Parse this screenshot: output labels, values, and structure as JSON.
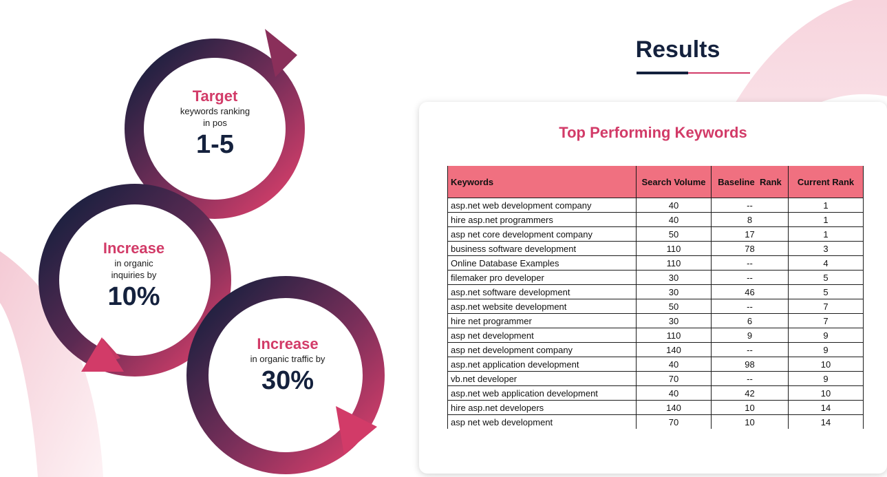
{
  "results": {
    "title": "Results"
  },
  "circles": [
    {
      "heading": "Target",
      "sub": [
        "keywords ranking",
        "in pos"
      ],
      "value": "1-5"
    },
    {
      "heading": "Increase",
      "sub": [
        "in organic",
        "inquiries by"
      ],
      "value": "10%"
    },
    {
      "heading": "Increase",
      "sub": [
        "in organic traffic by"
      ],
      "value": "30%"
    }
  ],
  "table": {
    "title": "Top Performing Keywords",
    "headers": [
      "Keywords",
      "Search Volume",
      "Baseline  Rank",
      "Current Rank"
    ],
    "rows": [
      [
        "asp.net web development company",
        "40",
        "--",
        "1"
      ],
      [
        "hire asp.net programmers",
        "40",
        "8",
        "1"
      ],
      [
        "asp net core development company",
        "50",
        "17",
        "1"
      ],
      [
        "business software development",
        "110",
        "78",
        "3"
      ],
      [
        "Online Database Examples",
        "110",
        "--",
        "4"
      ],
      [
        "filemaker pro developer",
        "30",
        "--",
        "5"
      ],
      [
        "asp.net software development",
        "30",
        "46",
        "5"
      ],
      [
        "asp.net website development",
        "50",
        "--",
        "7"
      ],
      [
        "hire net programmer",
        "30",
        "6",
        "7"
      ],
      [
        "asp net development",
        "110",
        "9",
        "9"
      ],
      [
        "asp net development company",
        "140",
        "--",
        "9"
      ],
      [
        "asp.net application development",
        "40",
        "98",
        "10"
      ],
      [
        "vb.net developer",
        "70",
        "--",
        "9"
      ],
      [
        "asp.net web application development",
        "40",
        "42",
        "10"
      ],
      [
        "hire asp.net developers",
        "140",
        "10",
        "14"
      ],
      [
        "asp net web development",
        "70",
        "10",
        "14"
      ]
    ]
  },
  "colors": {
    "navy": "#14213d",
    "pink": "#d23b68",
    "header": "#f07080"
  }
}
